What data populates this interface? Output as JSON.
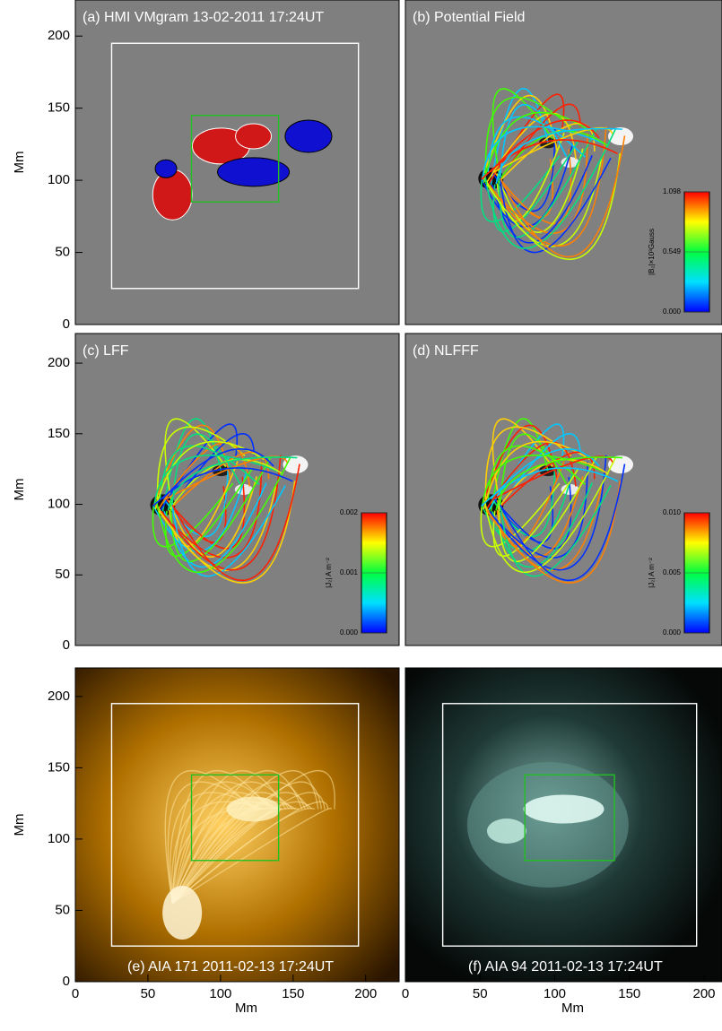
{
  "chart_data": [
    {
      "type": "image",
      "title": "(a) HMI VMgram 13-02-2011 17:24UT",
      "ylabel": "Mm",
      "xlim": [
        0,
        223
      ],
      "ylim": [
        0,
        225
      ],
      "yticks": [
        0,
        50,
        100,
        150,
        200
      ],
      "regions": [
        {
          "x": [
            25,
            195
          ],
          "y": [
            25,
            195
          ],
          "color": "#ffffff"
        },
        {
          "x": [
            80,
            140
          ],
          "y": [
            85,
            145
          ],
          "color": "#22c022"
        }
      ]
    },
    {
      "type": "image",
      "title": "(b) Potential Field",
      "xlim": [
        0,
        212
      ],
      "ylim": [
        0,
        225
      ],
      "colorbar": {
        "label": "|B₂|×10³Gauss",
        "lim": [
          0,
          1.098
        ],
        "ticks": [
          {
            "value": 0,
            "label": "0.000"
          },
          {
            "value": 0.549,
            "label": "0.549"
          },
          {
            "value": 1.098,
            "label": "1.098"
          }
        ]
      }
    },
    {
      "type": "image",
      "title": "(c) LFF",
      "ylabel": "Mm",
      "xlim": [
        0,
        223
      ],
      "ylim": [
        0,
        221
      ],
      "yticks": [
        0,
        50,
        100,
        150,
        200
      ],
      "colorbar": {
        "label": "|J₂| A m⁻²",
        "lim": [
          0,
          0.002
        ],
        "ticks": [
          {
            "value": 0,
            "label": "0.000"
          },
          {
            "value": 0.001,
            "label": "0.001"
          },
          {
            "value": 0.002,
            "label": "0.002"
          }
        ]
      }
    },
    {
      "type": "image",
      "title": "(d) NLFFF",
      "xlim": [
        0,
        212
      ],
      "ylim": [
        0,
        221
      ],
      "colorbar": {
        "label": "|J₂| A m⁻²",
        "lim": [
          0,
          0.01
        ],
        "ticks": [
          {
            "value": 0,
            "label": "0.000"
          },
          {
            "value": 0.005,
            "label": "0.005"
          },
          {
            "value": 0.01,
            "label": "0.010"
          }
        ]
      }
    },
    {
      "type": "image",
      "title": "(e) AIA 171 2011-02-13 17:24UT",
      "ylabel": "Mm",
      "xlabel": "Mm",
      "xlim": [
        0,
        223
      ],
      "ylim": [
        0,
        220
      ],
      "xticks": [
        0,
        50,
        100,
        150,
        200
      ],
      "yticks": [
        0,
        50,
        100,
        150,
        200
      ],
      "regions": [
        {
          "x": [
            25,
            195
          ],
          "y": [
            25,
            195
          ],
          "color": "#ffffff"
        },
        {
          "x": [
            80,
            140
          ],
          "y": [
            85,
            145
          ],
          "color": "#22c022"
        }
      ]
    },
    {
      "type": "image",
      "title": "(f) AIA 94 2011-02-13 17:24UT",
      "xlabel": "Mm",
      "xlim": [
        0,
        212
      ],
      "ylim": [
        0,
        220
      ],
      "xticks": [
        0,
        50,
        100,
        150,
        200
      ],
      "regions": [
        {
          "x": [
            25,
            195
          ],
          "y": [
            25,
            195
          ],
          "color": "#ffffff"
        },
        {
          "x": [
            80,
            140
          ],
          "y": [
            85,
            145
          ],
          "color": "#22c022"
        }
      ]
    }
  ]
}
